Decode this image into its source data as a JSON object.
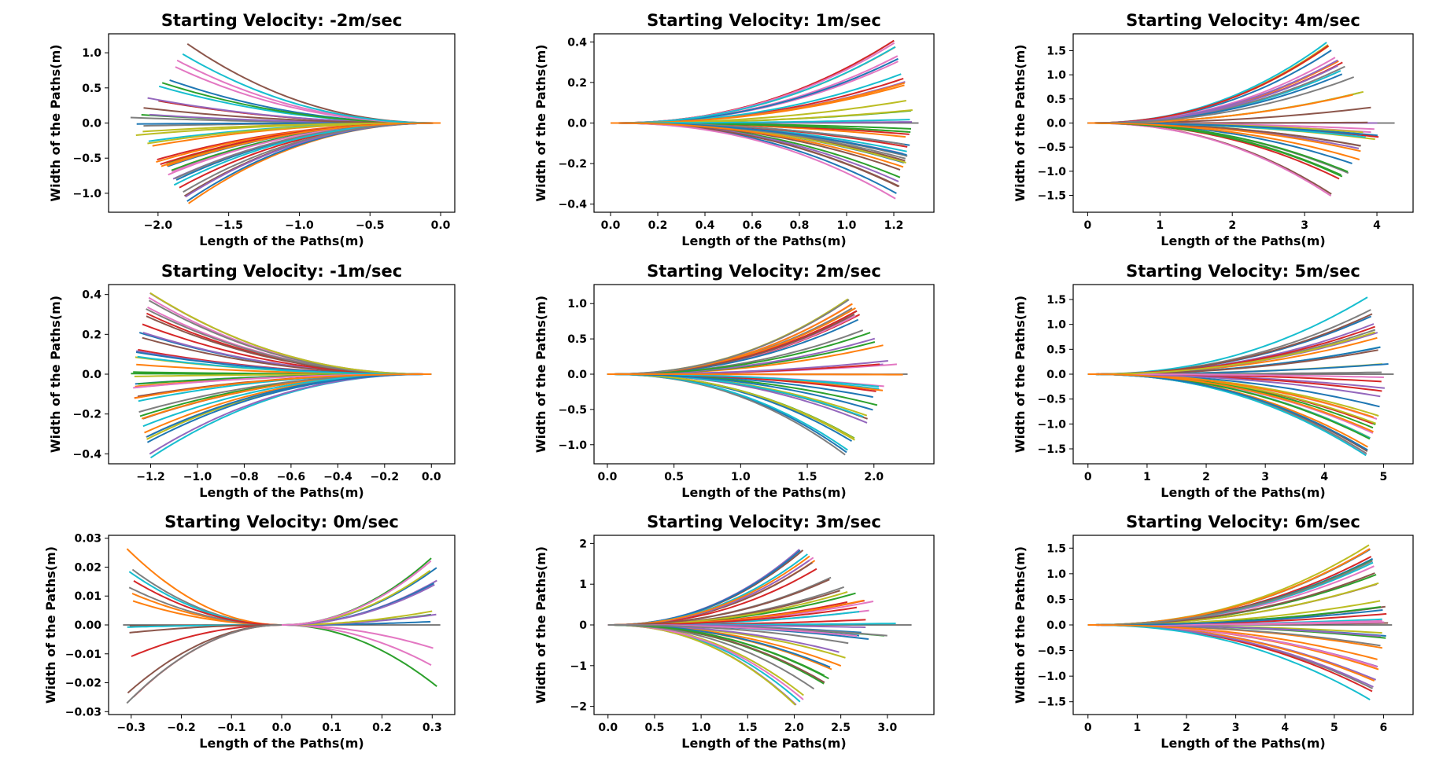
{
  "chart_data": [
    {
      "type": "line",
      "title": "Starting Velocity: -2m/sec",
      "xlabel": "Length of the Paths(m)",
      "ylabel": "Width of the Paths(m)",
      "xlim": [
        -2.35,
        0.1
      ],
      "ylim": [
        -1.27,
        1.27
      ],
      "xticks": [
        -2.0,
        -1.5,
        -1.0,
        -0.5,
        0.0
      ],
      "xtick_labels": [
        "−2.0",
        "−1.5",
        "−1.0",
        "−0.5",
        "0.0"
      ],
      "yticks": [
        1.0,
        0.5,
        0.0,
        -0.5,
        -1.0
      ],
      "ytick_labels": [
        "1.0",
        "0.5",
        "0.0",
        "−0.5",
        "−1.0"
      ],
      "paths": {
        "base_x": 0.0,
        "reach": -1.78,
        "reach_spread": -0.45,
        "max_y": 1.16,
        "count": 42,
        "straight_line": false
      }
    },
    {
      "type": "line",
      "title": "Starting Velocity: 1m/sec",
      "xlabel": "Length of the Paths(m)",
      "ylabel": "Width of the Paths(m)",
      "xlim": [
        -0.07,
        1.37
      ],
      "ylim": [
        -0.44,
        0.44
      ],
      "xticks": [
        0.0,
        0.2,
        0.4,
        0.6,
        0.8,
        1.0,
        1.2
      ],
      "xtick_labels": [
        "0.0",
        "0.2",
        "0.4",
        "0.6",
        "0.8",
        "1.0",
        "1.2"
      ],
      "yticks": [
        0.4,
        0.2,
        0.0,
        -0.2,
        -0.4
      ],
      "ytick_labels": [
        "0.4",
        "0.2",
        "0.0",
        "−0.2",
        "−0.4"
      ],
      "paths": {
        "base_x": 0.0,
        "reach": 1.2,
        "reach_spread": 0.1,
        "max_y": 0.41,
        "count": 42,
        "straight_line": true
      }
    },
    {
      "type": "line",
      "title": "Starting Velocity: 4m/sec",
      "xlabel": "Length of the Paths(m)",
      "ylabel": "Width of the Paths(m)",
      "xlim": [
        -0.2,
        4.5
      ],
      "ylim": [
        -1.85,
        1.85
      ],
      "xticks": [
        0,
        1,
        2,
        3,
        4
      ],
      "xtick_labels": [
        "0",
        "1",
        "2",
        "3",
        "4"
      ],
      "yticks": [
        1.5,
        1.0,
        0.5,
        0.0,
        -0.5,
        -1.0,
        -1.5
      ],
      "ytick_labels": [
        "1.5",
        "1.0",
        "0.5",
        "0.0",
        "−0.5",
        "−1.0",
        "−1.5"
      ],
      "paths": {
        "base_x": 0.0,
        "reach": 3.3,
        "reach_spread": 0.9,
        "max_y": 1.68,
        "count": 42,
        "straight_line": true
      }
    },
    {
      "type": "line",
      "title": "Starting Velocity: -1m/sec",
      "xlabel": "Length of the Paths(m)",
      "ylabel": "Width of the Paths(m)",
      "xlim": [
        -1.38,
        0.1
      ],
      "ylim": [
        -0.45,
        0.45
      ],
      "xticks": [
        -1.2,
        -1.0,
        -0.8,
        -0.6,
        -0.4,
        -0.2,
        0.0
      ],
      "xtick_labels": [
        "−1.2",
        "−1.0",
        "−0.8",
        "−0.6",
        "−0.4",
        "−0.2",
        "0.0"
      ],
      "yticks": [
        0.4,
        0.2,
        0.0,
        -0.2,
        -0.4
      ],
      "ytick_labels": [
        "0.4",
        "0.2",
        "0.0",
        "−0.2",
        "−0.4"
      ],
      "paths": {
        "base_x": 0.0,
        "reach": -1.2,
        "reach_spread": -0.1,
        "max_y": 0.42,
        "count": 42,
        "straight_line": false
      }
    },
    {
      "type": "line",
      "title": "Starting Velocity: 2m/sec",
      "xlabel": "Length of the Paths(m)",
      "ylabel": "Width of the Paths(m)",
      "xlim": [
        -0.1,
        2.45
      ],
      "ylim": [
        -1.27,
        1.27
      ],
      "xticks": [
        0.0,
        0.5,
        1.0,
        1.5,
        2.0
      ],
      "xtick_labels": [
        "0.0",
        "0.5",
        "1.0",
        "1.5",
        "2.0"
      ],
      "yticks": [
        1.0,
        0.5,
        0.0,
        -0.5,
        -1.0
      ],
      "ytick_labels": [
        "1.0",
        "0.5",
        "0.0",
        "−0.5",
        "−1.0"
      ],
      "paths": {
        "base_x": 0.0,
        "reach": 1.78,
        "reach_spread": 0.45,
        "max_y": 1.16,
        "count": 42,
        "straight_line": true
      }
    },
    {
      "type": "line",
      "title": "Starting Velocity: 5m/sec",
      "xlabel": "Length of the Paths(m)",
      "ylabel": "Width of the Paths(m)",
      "xlim": [
        -0.25,
        5.5
      ],
      "ylim": [
        -1.8,
        1.8
      ],
      "xticks": [
        0,
        1,
        2,
        3,
        4,
        5
      ],
      "xtick_labels": [
        "0",
        "1",
        "2",
        "3",
        "4",
        "5"
      ],
      "yticks": [
        1.5,
        1.0,
        0.5,
        0.0,
        -0.5,
        -1.0,
        -1.5
      ],
      "ytick_labels": [
        "1.5",
        "1.0",
        "0.5",
        "0.0",
        "−0.5",
        "−1.0",
        "−1.5"
      ],
      "paths": {
        "base_x": 0.0,
        "reach": 4.7,
        "reach_spread": 0.45,
        "max_y": 1.65,
        "count": 42,
        "straight_line": true
      }
    },
    {
      "type": "line",
      "title": "Starting Velocity: 0m/sec",
      "xlabel": "Length of the Paths(m)",
      "ylabel": "Width of the Paths(m)",
      "xlim": [
        -0.345,
        0.345
      ],
      "ylim": [
        -0.031,
        0.031
      ],
      "xticks": [
        -0.3,
        -0.2,
        -0.1,
        0.0,
        0.1,
        0.2,
        0.3
      ],
      "xtick_labels": [
        "−0.3",
        "−0.2",
        "−0.1",
        "0.0",
        "0.1",
        "0.2",
        "0.3"
      ],
      "yticks": [
        0.03,
        0.02,
        0.01,
        0.0,
        -0.01,
        -0.02,
        -0.03
      ],
      "ytick_labels": [
        "0.03",
        "0.02",
        "0.01",
        "0.00",
        "−0.01",
        "−0.02",
        "−0.03"
      ],
      "paths": {
        "base_x": 0.0,
        "reach": 0.31,
        "reach_spread": 0.0,
        "max_y": 0.028,
        "count": 28,
        "straight_line": true,
        "symmetric": true
      }
    },
    {
      "type": "line",
      "title": "Starting Velocity: 3m/sec",
      "xlabel": "Length of the Paths(m)",
      "ylabel": "Width of the Paths(m)",
      "xlim": [
        -0.15,
        3.5
      ],
      "ylim": [
        -2.2,
        2.2
      ],
      "xticks": [
        0.0,
        0.5,
        1.0,
        1.5,
        2.0,
        2.5,
        3.0
      ],
      "xtick_labels": [
        "0.0",
        "0.5",
        "1.0",
        "1.5",
        "2.0",
        "2.5",
        "3.0"
      ],
      "yticks": [
        2,
        1,
        0,
        -1,
        -2
      ],
      "ytick_labels": [
        "2",
        "1",
        "0",
        "−1",
        "−2"
      ],
      "paths": {
        "base_x": 0.0,
        "reach": 2.0,
        "reach_spread": 1.2,
        "max_y": 2.0,
        "count": 48,
        "straight_line": true
      }
    },
    {
      "type": "line",
      "title": "Starting Velocity: 6m/sec",
      "xlabel": "Length of the Paths(m)",
      "ylabel": "Width of the Paths(m)",
      "xlim": [
        -0.3,
        6.6
      ],
      "ylim": [
        -1.75,
        1.75
      ],
      "xticks": [
        0,
        1,
        2,
        3,
        4,
        5,
        6
      ],
      "xtick_labels": [
        "0",
        "1",
        "2",
        "3",
        "4",
        "5",
        "6"
      ],
      "yticks": [
        1.5,
        1.0,
        0.5,
        0.0,
        -0.5,
        -1.0,
        -1.5
      ],
      "ytick_labels": [
        "1.5",
        "1.0",
        "0.5",
        "0.0",
        "−0.5",
        "−1.0",
        "−1.5"
      ],
      "paths": {
        "base_x": 0.0,
        "reach": 5.7,
        "reach_spread": 0.45,
        "max_y": 1.58,
        "count": 42,
        "straight_line": true
      }
    }
  ],
  "colors": [
    "#1f77b4",
    "#ff7f0e",
    "#2ca02c",
    "#d62728",
    "#9467bd",
    "#8c564b",
    "#e377c2",
    "#7f7f7f",
    "#bcbd22",
    "#17becf"
  ]
}
